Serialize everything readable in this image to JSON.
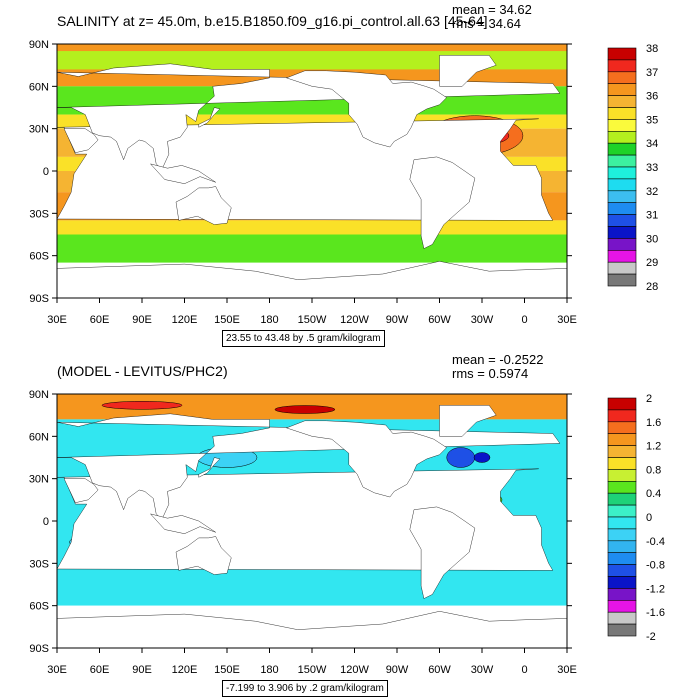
{
  "panels": [
    {
      "title": "SALINITY at z=  45.0m, b.e15.B1850.f09_g16.pi_control.all.63 [45-64]",
      "mean": "mean = 34.62",
      "rms": "rms = 34.64",
      "contour_info": "23.55 to 43.48 by .5 gram/kilogram",
      "lat_labels": [
        "90N",
        "60N",
        "30N",
        "0",
        "30S",
        "60S",
        "90S"
      ],
      "lon_labels": [
        "30E",
        "60E",
        "90E",
        "120E",
        "150E",
        "180",
        "150W",
        "120W",
        "90W",
        "60W",
        "30W",
        "0",
        "30E"
      ],
      "colorbar_labels": [
        "38",
        "37",
        "36",
        "35",
        "34",
        "33",
        "32",
        "31",
        "30",
        "29",
        "28"
      ],
      "colorbar_colors": [
        "#c80000",
        "#f0281e",
        "#f56e1e",
        "#f5961e",
        "#f5b432",
        "#fae128",
        "#fafa3c",
        "#b4f01e",
        "#1ed228",
        "#3cf0a0",
        "#1ef0dc",
        "#1edcf0",
        "#3cbef0",
        "#1e8cf0",
        "#1e50e6",
        "#0a14c8",
        "#7814c8",
        "#e614e6",
        "#c8c8c8",
        "#787878"
      ]
    },
    {
      "title": "(MODEL - LEVITUS/PHC2)",
      "mean": "mean = -0.2522",
      "rms": "rms = 0.5974",
      "contour_info": "-7.199 to 3.906 by .2 gram/kilogram",
      "lat_labels": [
        "90N",
        "60N",
        "30N",
        "0",
        "30S",
        "60S",
        "90S"
      ],
      "lon_labels": [
        "30E",
        "60E",
        "90E",
        "120E",
        "150E",
        "180",
        "150W",
        "120W",
        "90W",
        "60W",
        "30W",
        "0",
        "30E"
      ],
      "colorbar_labels": [
        "2",
        "1.6",
        "1.2",
        "0.8",
        "0.4",
        "0",
        "-0.4",
        "-0.8",
        "-1.2",
        "-1.6",
        "-2"
      ],
      "colorbar_colors": [
        "#c80000",
        "#f0281e",
        "#f56e1e",
        "#f5961e",
        "#f5b432",
        "#fae128",
        "#c8f032",
        "#5ae61e",
        "#1ed278",
        "#3cf0c8",
        "#32e6f0",
        "#3cd2f5",
        "#32b4f0",
        "#1e8cf0",
        "#1e50e6",
        "#0a14c8",
        "#7814c8",
        "#e614e6",
        "#c8c8c8",
        "#787878"
      ]
    }
  ]
}
